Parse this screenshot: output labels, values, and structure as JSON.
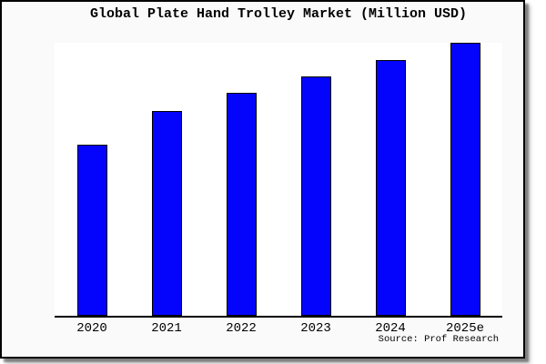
{
  "title": "Global Plate Hand Trolley Market (Million USD)",
  "footer": {
    "source": "Source: Prof Research"
  },
  "colors": {
    "page_bg": "#ffffff",
    "card_bg": "#fafafa",
    "card_border": "#000000",
    "plot_bg": "#ffffff",
    "axis": "#000000",
    "bar_fill": "#0404fc",
    "bar_border": "#000000",
    "text": "#000000"
  },
  "chart_data": {
    "type": "bar",
    "title": "Global Plate Hand Trolley Market (Million USD)",
    "categories": [
      "2020",
      "2021",
      "2022",
      "2023",
      "2024",
      "2025e"
    ],
    "values": [
      62.5,
      75,
      81.5,
      87.5,
      93.5,
      100
    ],
    "value_note": "no y-axis shown; values estimated from bar heights relative to 2025e = 100",
    "xlabel": "",
    "ylabel": "",
    "ylim": [
      0,
      101
    ],
    "grid": false,
    "legend": "none",
    "yaxis_visible": false,
    "source": "Source: Prof Research"
  }
}
